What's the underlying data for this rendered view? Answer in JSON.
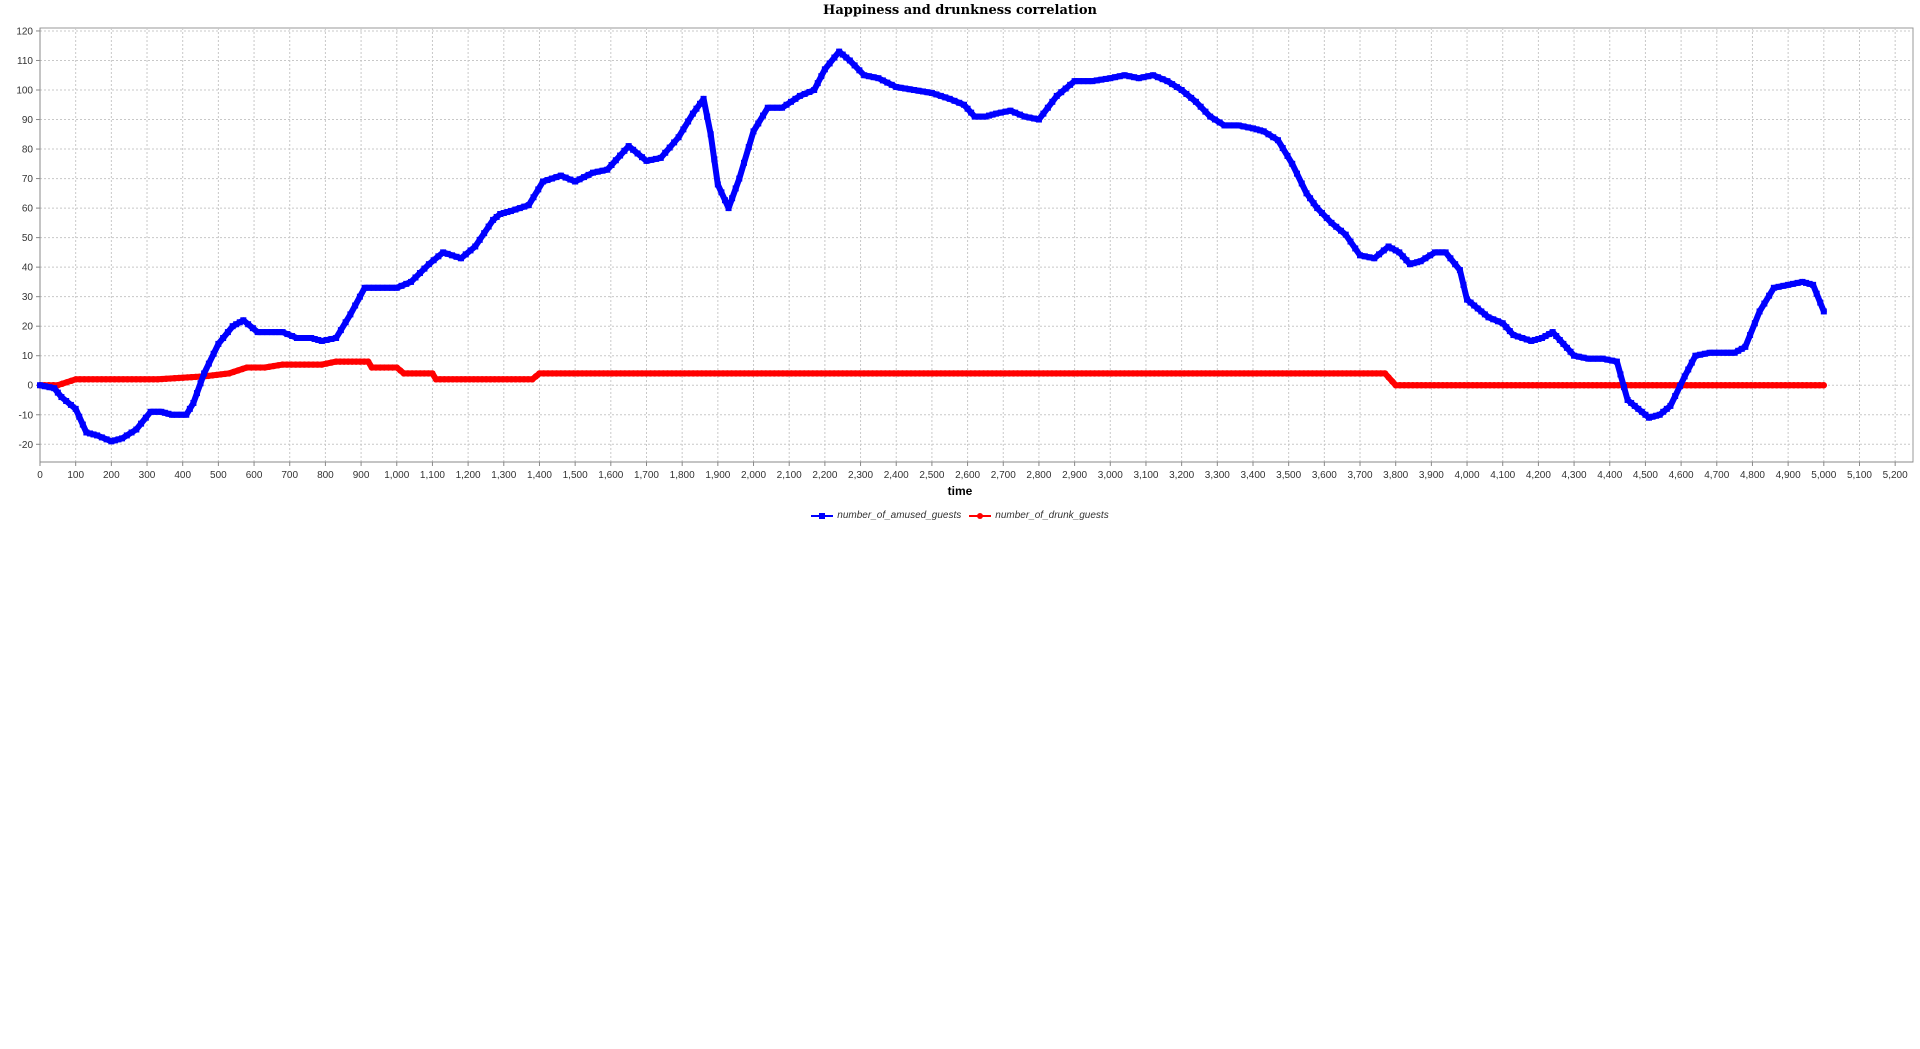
{
  "chart_data": {
    "type": "line",
    "title": "Happiness and drunkness correlation",
    "xlabel": "time",
    "ylabel": "",
    "xlim": [
      0,
      5250
    ],
    "ylim": [
      -26,
      121
    ],
    "x_ticks": [
      0,
      100,
      200,
      300,
      400,
      500,
      600,
      700,
      800,
      900,
      1000,
      1100,
      1200,
      1300,
      1400,
      1500,
      1600,
      1700,
      1800,
      1900,
      2000,
      2100,
      2200,
      2300,
      2400,
      2500,
      2600,
      2700,
      2800,
      2900,
      3000,
      3100,
      3200,
      3300,
      3400,
      3500,
      3600,
      3700,
      3800,
      3900,
      4000,
      4100,
      4200,
      4300,
      4400,
      4500,
      4600,
      4700,
      4800,
      4900,
      5000,
      5100,
      5200
    ],
    "x_tick_labels": [
      "0",
      "100",
      "200",
      "300",
      "400",
      "500",
      "600",
      "700",
      "800",
      "900",
      "1,000",
      "1,100",
      "1,200",
      "1,300",
      "1,400",
      "1,500",
      "1,600",
      "1,700",
      "1,800",
      "1,900",
      "2,000",
      "2,100",
      "2,200",
      "2,300",
      "2,400",
      "2,500",
      "2,600",
      "2,700",
      "2,800",
      "2,900",
      "3,000",
      "3,100",
      "3,200",
      "3,300",
      "3,400",
      "3,500",
      "3,600",
      "3,700",
      "3,800",
      "3,900",
      "4,000",
      "4,100",
      "4,200",
      "4,300",
      "4,400",
      "4,500",
      "4,600",
      "4,700",
      "4,800",
      "4,900",
      "5,000",
      "5,100",
      "5,200"
    ],
    "y_ticks": [
      -20,
      -10,
      0,
      10,
      20,
      30,
      40,
      50,
      60,
      70,
      80,
      90,
      100,
      110,
      120
    ],
    "y_tick_labels": [
      "-20",
      "-10",
      "0",
      "10",
      "20",
      "30",
      "40",
      "50",
      "60",
      "70",
      "80",
      "90",
      "100",
      "110",
      "120"
    ],
    "grid": true,
    "legend_position": "bottom",
    "series": [
      {
        "name": "number_of_amused_guests",
        "color": "#0000ff",
        "marker": "square",
        "points": [
          [
            0,
            0
          ],
          [
            40,
            -1
          ],
          [
            60,
            -4
          ],
          [
            100,
            -8
          ],
          [
            130,
            -16
          ],
          [
            160,
            -17
          ],
          [
            200,
            -19
          ],
          [
            230,
            -18
          ],
          [
            270,
            -15
          ],
          [
            310,
            -9
          ],
          [
            340,
            -9
          ],
          [
            370,
            -10
          ],
          [
            410,
            -10
          ],
          [
            430,
            -6
          ],
          [
            460,
            4
          ],
          [
            500,
            14
          ],
          [
            540,
            20
          ],
          [
            570,
            22
          ],
          [
            610,
            18
          ],
          [
            650,
            18
          ],
          [
            680,
            18
          ],
          [
            720,
            16
          ],
          [
            760,
            16
          ],
          [
            790,
            15
          ],
          [
            830,
            16
          ],
          [
            870,
            24
          ],
          [
            910,
            33
          ],
          [
            960,
            33
          ],
          [
            1000,
            33
          ],
          [
            1040,
            35
          ],
          [
            1090,
            41
          ],
          [
            1130,
            45
          ],
          [
            1180,
            43
          ],
          [
            1220,
            47
          ],
          [
            1270,
            56
          ],
          [
            1290,
            58
          ],
          [
            1320,
            59
          ],
          [
            1370,
            61
          ],
          [
            1410,
            69
          ],
          [
            1460,
            71
          ],
          [
            1500,
            69
          ],
          [
            1550,
            72
          ],
          [
            1590,
            73
          ],
          [
            1650,
            81
          ],
          [
            1700,
            76
          ],
          [
            1740,
            77
          ],
          [
            1790,
            84
          ],
          [
            1830,
            92
          ],
          [
            1860,
            97
          ],
          [
            1880,
            85
          ],
          [
            1900,
            68
          ],
          [
            1930,
            60
          ],
          [
            1960,
            70
          ],
          [
            2000,
            86
          ],
          [
            2040,
            94
          ],
          [
            2080,
            94
          ],
          [
            2130,
            98
          ],
          [
            2170,
            100
          ],
          [
            2200,
            107
          ],
          [
            2240,
            113
          ],
          [
            2270,
            110
          ],
          [
            2310,
            105
          ],
          [
            2350,
            104
          ],
          [
            2400,
            101
          ],
          [
            2450,
            100
          ],
          [
            2500,
            99
          ],
          [
            2550,
            97
          ],
          [
            2590,
            95
          ],
          [
            2620,
            91
          ],
          [
            2650,
            91
          ],
          [
            2680,
            92
          ],
          [
            2720,
            93
          ],
          [
            2760,
            91
          ],
          [
            2800,
            90
          ],
          [
            2850,
            98
          ],
          [
            2900,
            103
          ],
          [
            2950,
            103
          ],
          [
            3000,
            104
          ],
          [
            3040,
            105
          ],
          [
            3080,
            104
          ],
          [
            3120,
            105
          ],
          [
            3160,
            103
          ],
          [
            3200,
            100
          ],
          [
            3240,
            96
          ],
          [
            3280,
            91
          ],
          [
            3320,
            88
          ],
          [
            3360,
            88
          ],
          [
            3400,
            87
          ],
          [
            3430,
            86
          ],
          [
            3470,
            83
          ],
          [
            3510,
            75
          ],
          [
            3550,
            65
          ],
          [
            3580,
            60
          ],
          [
            3620,
            55
          ],
          [
            3660,
            51
          ],
          [
            3700,
            44
          ],
          [
            3740,
            43
          ],
          [
            3780,
            47
          ],
          [
            3810,
            45
          ],
          [
            3840,
            41
          ],
          [
            3870,
            42
          ],
          [
            3910,
            45
          ],
          [
            3940,
            45
          ],
          [
            3980,
            39
          ],
          [
            4000,
            29
          ],
          [
            4030,
            26
          ],
          [
            4060,
            23
          ],
          [
            4100,
            21
          ],
          [
            4130,
            17
          ],
          [
            4180,
            15
          ],
          [
            4210,
            16
          ],
          [
            4240,
            18
          ],
          [
            4270,
            14
          ],
          [
            4300,
            10
          ],
          [
            4340,
            9
          ],
          [
            4380,
            9
          ],
          [
            4420,
            8
          ],
          [
            4450,
            -5
          ],
          [
            4480,
            -8
          ],
          [
            4510,
            -11
          ],
          [
            4540,
            -10
          ],
          [
            4570,
            -7
          ],
          [
            4610,
            3
          ],
          [
            4640,
            10
          ],
          [
            4680,
            11
          ],
          [
            4720,
            11
          ],
          [
            4750,
            11
          ],
          [
            4780,
            13
          ],
          [
            4820,
            25
          ],
          [
            4860,
            33
          ],
          [
            4900,
            34
          ],
          [
            4940,
            35
          ],
          [
            4970,
            34
          ],
          [
            5000,
            25
          ]
        ]
      },
      {
        "name": "number_of_drunk_guests",
        "color": "#ff0000",
        "marker": "circle",
        "points": [
          [
            0,
            0
          ],
          [
            50,
            0
          ],
          [
            100,
            2
          ],
          [
            330,
            2
          ],
          [
            460,
            3
          ],
          [
            530,
            4
          ],
          [
            580,
            6
          ],
          [
            630,
            6
          ],
          [
            680,
            7
          ],
          [
            790,
            7
          ],
          [
            830,
            8
          ],
          [
            920,
            8
          ],
          [
            930,
            6
          ],
          [
            1000,
            6
          ],
          [
            1020,
            4
          ],
          [
            1100,
            4
          ],
          [
            1110,
            2
          ],
          [
            1380,
            2
          ],
          [
            1400,
            4
          ],
          [
            3770,
            4
          ],
          [
            3800,
            0
          ],
          [
            5000,
            0
          ]
        ]
      }
    ]
  }
}
